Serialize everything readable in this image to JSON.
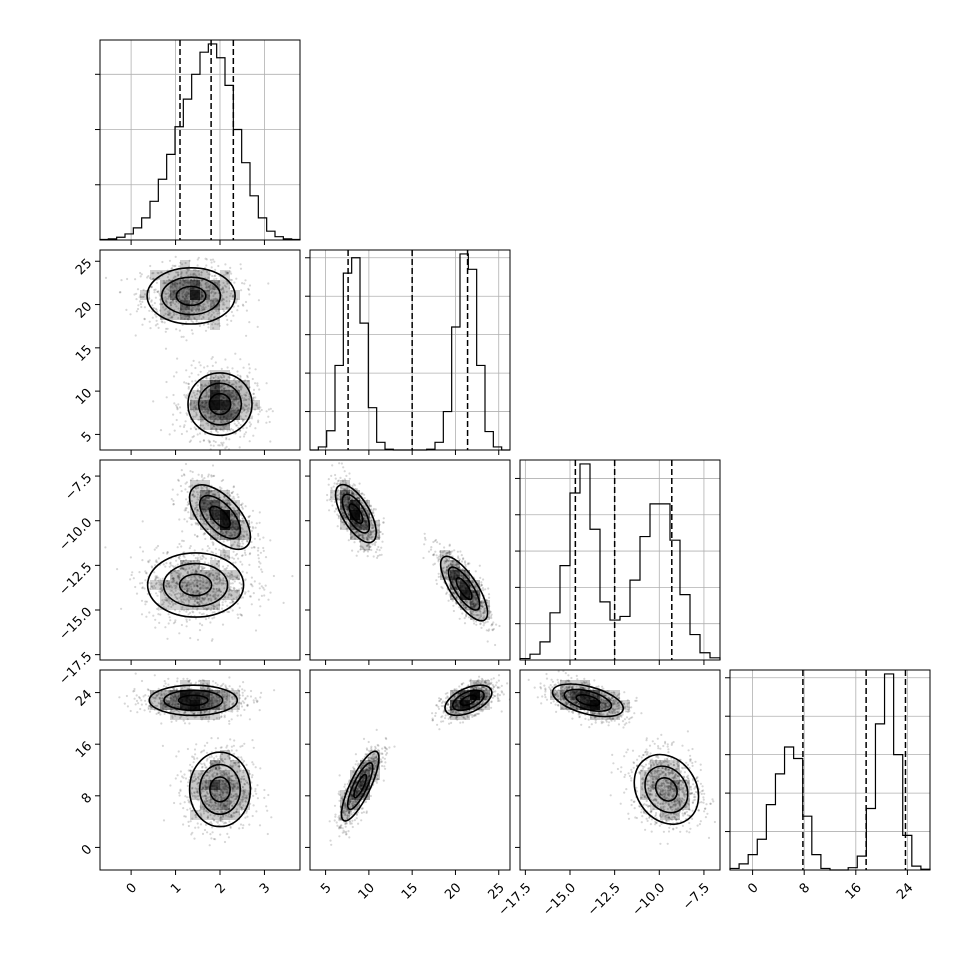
{
  "chart_data": {
    "type": "scatter",
    "variables": [
      {
        "range": [
          -0.7,
          3.8
        ],
        "ticks": [
          0,
          1,
          2,
          3
        ],
        "tick_labels": [
          "0",
          "1",
          "2",
          "3"
        ],
        "quantiles": [
          1.1,
          1.8,
          2.3
        ]
      },
      {
        "range": [
          3.2,
          26.3
        ],
        "ticks": [
          5,
          10,
          15,
          20,
          25
        ],
        "tick_labels": [
          "5",
          "10",
          "15",
          "20",
          "25"
        ],
        "quantiles": [
          7.6,
          15.0,
          21.4
        ]
      },
      {
        "range": [
          -17.8,
          -6.6
        ],
        "ticks": [
          -17.5,
          -15.0,
          -12.5,
          -10.0,
          -7.5
        ],
        "tick_labels": [
          "−17.5",
          "−15.0",
          "−12.5",
          "−10.0",
          "−7.5"
        ],
        "quantiles": [
          -14.7,
          -12.5,
          -9.3
        ]
      },
      {
        "range": [
          -3.5,
          27.5
        ],
        "ticks": [
          0,
          8,
          16,
          24
        ],
        "tick_labels": [
          "0",
          "8",
          "16",
          "24"
        ],
        "quantiles": [
          7.8,
          17.6,
          23.7
        ]
      }
    ],
    "histograms": [
      {
        "edges": [
          -0.7,
          3.8
        ],
        "counts": [
          1,
          2,
          5,
          11,
          22,
          40,
          70,
          110,
          155,
          205,
          255,
          300,
          340,
          355,
          330,
          280,
          200,
          140,
          80,
          40,
          16,
          6,
          2,
          1
        ]
      },
      {
        "edges": [
          3.2,
          26.3
        ],
        "counts": [
          0,
          4,
          25,
          110,
          230,
          250,
          165,
          55,
          10,
          1,
          0,
          0,
          0,
          0,
          1,
          10,
          50,
          160,
          255,
          235,
          110,
          24,
          4,
          0
        ]
      },
      {
        "edges": [
          -17.8,
          -6.6
        ],
        "counts": [
          2,
          8,
          25,
          65,
          130,
          230,
          270,
          180,
          80,
          55,
          60,
          110,
          170,
          215,
          215,
          165,
          90,
          35,
          10,
          3
        ]
      },
      {
        "edges": [
          -3.5,
          27.5
        ],
        "counts": [
          2,
          8,
          20,
          40,
          85,
          125,
          160,
          145,
          70,
          20,
          2,
          0,
          0,
          3,
          18,
          80,
          190,
          255,
          150,
          45,
          5,
          1
        ]
      }
    ],
    "pairs": [
      {
        "x_var": 0,
        "y_var": 1,
        "modes": [
          {
            "mx": 1.35,
            "my": 21.0,
            "sx": 0.55,
            "sy": 1.8,
            "rho": 0
          },
          {
            "mx": 2.0,
            "my": 8.5,
            "sx": 0.4,
            "sy": 2.0,
            "rho": 0
          }
        ]
      },
      {
        "x_var": 0,
        "y_var": 2,
        "modes": [
          {
            "mx": 1.45,
            "my": -13.6,
            "sx": 0.6,
            "sy": 1.0,
            "rho": 0
          },
          {
            "mx": 2.0,
            "my": -9.8,
            "sx": 0.38,
            "sy": 1.0,
            "rho": -0.6
          }
        ]
      },
      {
        "x_var": 1,
        "y_var": 2,
        "modes": [
          {
            "mx": 8.5,
            "my": -9.6,
            "sx": 1.3,
            "sy": 0.9,
            "rho": -0.65
          },
          {
            "mx": 21.0,
            "my": -13.8,
            "sx": 1.5,
            "sy": 1.0,
            "rho": -0.75
          }
        ]
      },
      {
        "x_var": 0,
        "y_var": 3,
        "modes": [
          {
            "mx": 1.4,
            "my": 22.8,
            "sx": 0.55,
            "sy": 1.3,
            "rho": 0
          },
          {
            "mx": 2.0,
            "my": 9.0,
            "sx": 0.38,
            "sy": 3.2,
            "rho": 0
          }
        ]
      },
      {
        "x_var": 1,
        "y_var": 3,
        "modes": [
          {
            "mx": 9.0,
            "my": 9.5,
            "sx": 1.2,
            "sy": 3.0,
            "rho": 0.8
          },
          {
            "mx": 21.5,
            "my": 22.8,
            "sx": 1.5,
            "sy": 1.3,
            "rho": 0.5
          }
        ]
      },
      {
        "x_var": 2,
        "y_var": 3,
        "modes": [
          {
            "mx": -14.0,
            "my": 22.8,
            "sx": 1.1,
            "sy": 1.4,
            "rho": -0.5
          },
          {
            "mx": -9.6,
            "my": 9.0,
            "sx": 1.0,
            "sy": 3.0,
            "rho": -0.2
          }
        ]
      }
    ],
    "grid": true,
    "dashed_lines": "quantiles on diagonal histograms"
  }
}
